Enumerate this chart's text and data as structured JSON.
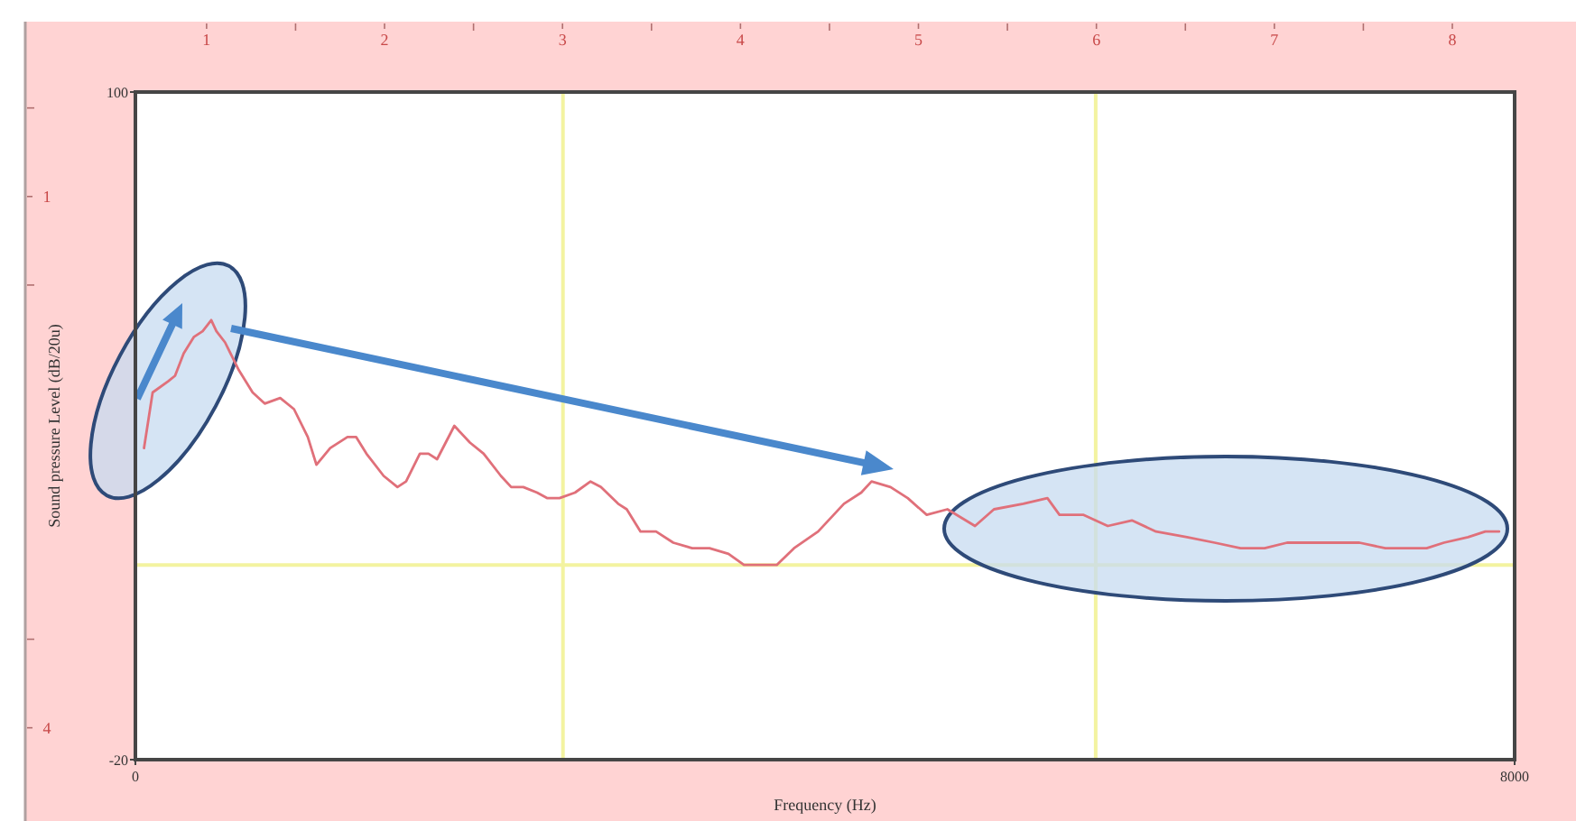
{
  "chart_data": {
    "type": "line",
    "xlabel": "Frequency (Hz)",
    "ylabel": "Sound pressure Level (dB/20u)",
    "x": [
      50,
      100,
      190,
      230,
      280,
      340,
      390,
      440,
      470,
      520,
      600,
      680,
      750,
      840,
      920,
      1000,
      1050,
      1130,
      1230,
      1280,
      1340,
      1440,
      1520,
      1570,
      1650,
      1700,
      1750,
      1850,
      1940,
      2020,
      2120,
      2180,
      2250,
      2330,
      2390,
      2460,
      2550,
      2640,
      2700,
      2800,
      2850,
      2930,
      3020,
      3120,
      3230,
      3330,
      3440,
      3530,
      3610,
      3720,
      3820,
      3960,
      4110,
      4210,
      4270,
      4380,
      4480,
      4590,
      4710,
      4870,
      4980,
      5150,
      5290,
      5360,
      5500,
      5640,
      5780,
      5920,
      6100,
      6260,
      6410,
      6550,
      6680,
      6830,
      6970,
      7100,
      7250,
      7350,
      7490,
      7590,
      7730,
      7830,
      7910
    ],
    "series": [
      {
        "color": "#e0707a",
        "values": [
          36,
          46,
          48,
          49,
          53,
          56,
          57,
          59,
          57,
          55,
          50,
          46,
          44,
          45,
          43,
          38,
          33,
          36,
          38,
          38,
          35,
          31,
          29,
          30,
          35,
          35,
          34,
          40,
          37,
          35,
          31,
          29,
          29,
          28,
          27,
          27,
          28,
          30,
          29,
          26,
          25,
          21,
          21,
          19,
          18,
          18,
          17,
          15,
          15,
          15,
          18,
          21,
          26,
          28,
          30,
          29,
          27,
          24,
          25,
          22,
          25,
          26,
          27,
          24,
          24,
          22,
          23,
          21,
          20,
          19,
          18,
          18,
          19,
          19,
          19,
          19,
          18,
          18,
          18,
          19,
          20,
          21,
          21
        ]
      }
    ],
    "xlim": [
      0,
      8000
    ],
    "xticks": [
      0,
      8000
    ],
    "ylim": [
      -20,
      100
    ],
    "yticks": [
      -20,
      100
    ],
    "x2lim": [
      0.6,
      8.35
    ],
    "x2ticks": [
      1,
      {
        "value": 1.5,
        "label": null
      },
      2,
      {
        "value": 2.5,
        "label": null
      },
      3,
      {
        "value": 3.5,
        "label": null
      },
      4,
      {
        "value": 4.5,
        "label": null
      },
      5,
      {
        "value": 5.5,
        "label": null
      },
      6,
      {
        "value": 6.5,
        "label": null
      },
      7,
      {
        "value": 7.5,
        "label": null
      },
      8
    ],
    "y3lim": [
      4.18,
      0.41
    ],
    "y3ticks": [
      {
        "value": 0.5,
        "label": null
      },
      1,
      {
        "value": 1.5,
        "label": null
      },
      {
        "value": 3.5,
        "label": null
      },
      4
    ],
    "ref_lines": [
      {
        "axis": "x",
        "value": 2480,
        "color": "#f3f3a0"
      },
      {
        "axis": "x",
        "value": 5570,
        "color": "#f3f3a0"
      },
      {
        "axis": "y",
        "value": 15,
        "color": "#f3f3a0"
      }
    ]
  }
}
